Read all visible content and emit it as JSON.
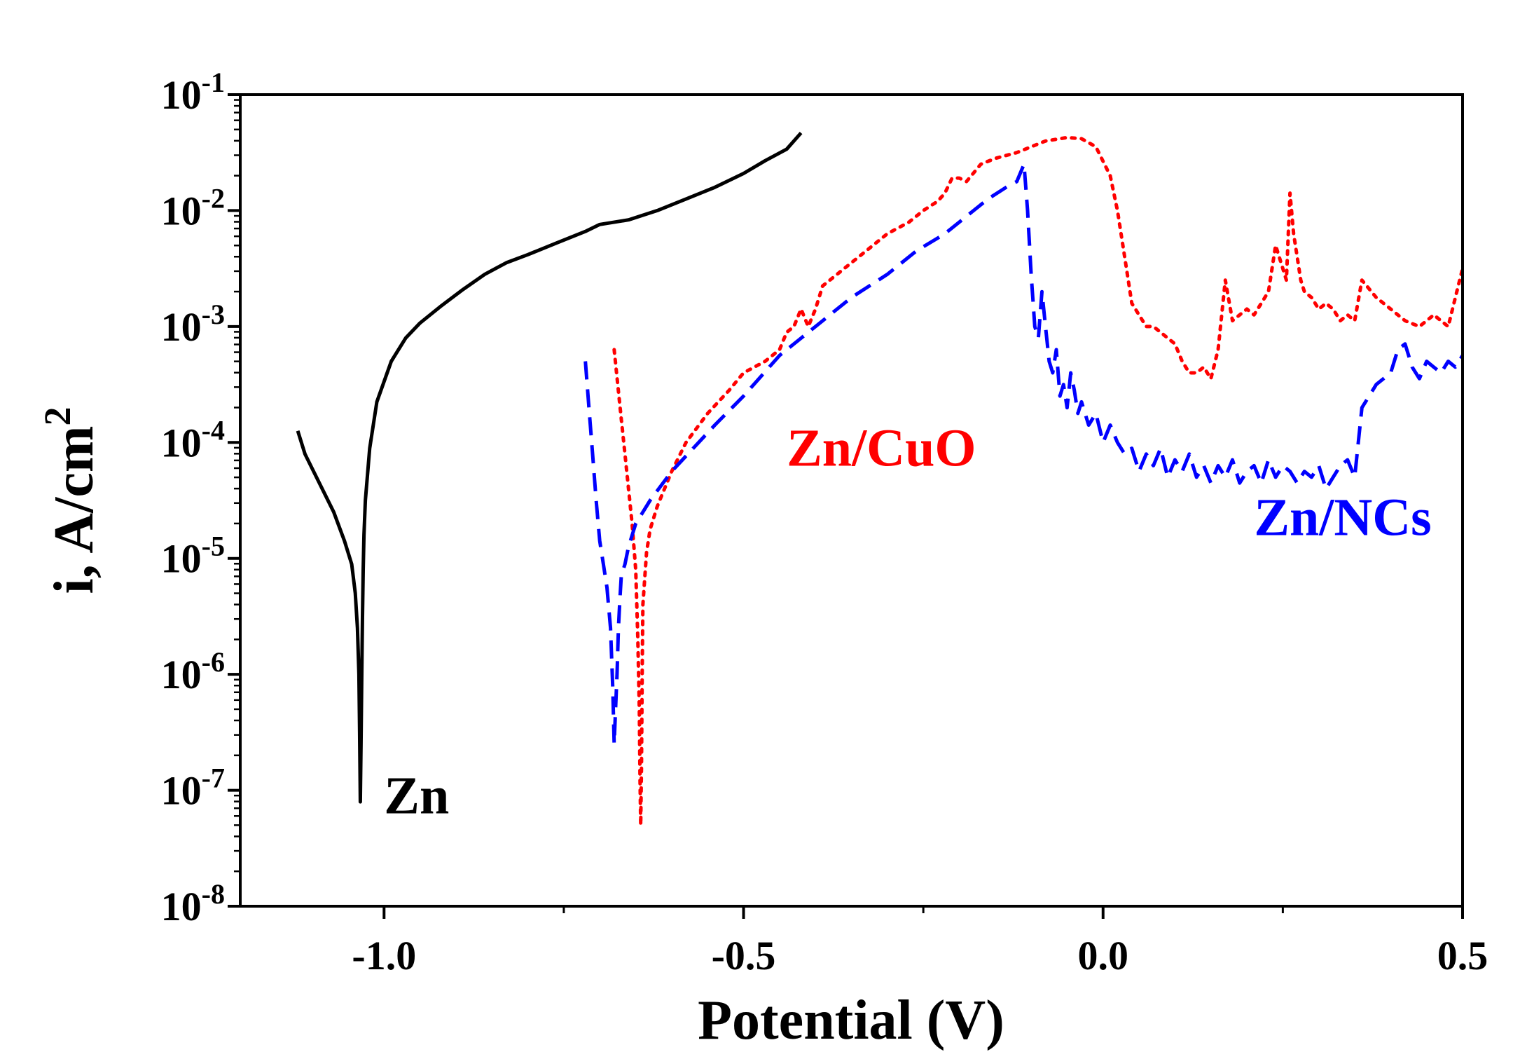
{
  "chart_data": {
    "type": "line",
    "title": "",
    "xlabel": "Potential (V)",
    "ylabel": "i, A/cm",
    "ylabel_superscript": "2",
    "xlim": [
      -1.2,
      0.5
    ],
    "ylim_exponent": [
      -8,
      -1
    ],
    "yscale": "log",
    "x_ticks": [
      {
        "value": -1.0,
        "label": "-1.0"
      },
      {
        "value": -0.5,
        "label": "-0.5"
      },
      {
        "value": 0.0,
        "label": "0.0"
      },
      {
        "value": 0.5,
        "label": "0.5"
      }
    ],
    "x_minor_ticks": [
      -0.75,
      -0.25,
      0.25
    ],
    "y_ticks": [
      {
        "exp": -1,
        "base": "10",
        "sup": "-1"
      },
      {
        "exp": -2,
        "base": "10",
        "sup": "-2"
      },
      {
        "exp": -3,
        "base": "10",
        "sup": "-3"
      },
      {
        "exp": -4,
        "base": "10",
        "sup": "-4"
      },
      {
        "exp": -5,
        "base": "10",
        "sup": "-5"
      },
      {
        "exp": -6,
        "base": "10",
        "sup": "-6"
      },
      {
        "exp": -7,
        "base": "10",
        "sup": "-7"
      },
      {
        "exp": -8,
        "base": "10",
        "sup": "-8"
      }
    ],
    "grid": false,
    "series": [
      {
        "name": "Zn",
        "color": "#000000",
        "style": "solid",
        "x": [
          -1.12,
          -1.11,
          -1.09,
          -1.07,
          -1.055,
          -1.045,
          -1.04,
          -1.037,
          -1.035,
          -1.034,
          -1.033,
          -1.032,
          -1.031,
          -1.03,
          -1.029,
          -1.028,
          -1.026,
          -1.02,
          -1.01,
          -0.99,
          -0.97,
          -0.95,
          -0.92,
          -0.89,
          -0.86,
          -0.83,
          -0.8,
          -0.76,
          -0.72,
          -0.7,
          -0.66,
          -0.62,
          -0.58,
          -0.54,
          -0.5,
          -0.47,
          -0.44,
          -0.42
        ],
        "log_y": [
          -3.9,
          -4.1,
          -4.35,
          -4.6,
          -4.85,
          -5.05,
          -5.3,
          -5.6,
          -6.0,
          -6.5,
          -7.1,
          -6.6,
          -6.0,
          -5.5,
          -5.1,
          -4.8,
          -4.5,
          -4.05,
          -3.65,
          -3.3,
          -3.1,
          -2.97,
          -2.82,
          -2.68,
          -2.55,
          -2.45,
          -2.38,
          -2.28,
          -2.18,
          -2.12,
          -2.08,
          -2.0,
          -1.9,
          -1.8,
          -1.68,
          -1.57,
          -1.47,
          -1.33
        ]
      },
      {
        "name": "Zn/CuO",
        "color": "#ff0000",
        "style": "dotted",
        "x": [
          -0.68,
          -0.675,
          -0.67,
          -0.665,
          -0.66,
          -0.655,
          -0.65,
          -0.647,
          -0.645,
          -0.644,
          -0.643,
          -0.642,
          -0.641,
          -0.64,
          -0.635,
          -0.63,
          -0.62,
          -0.6,
          -0.58,
          -0.55,
          -0.52,
          -0.5,
          -0.47,
          -0.45,
          -0.44,
          -0.43,
          -0.42,
          -0.41,
          -0.4,
          -0.39,
          -0.37,
          -0.35,
          -0.32,
          -0.3,
          -0.27,
          -0.25,
          -0.23,
          -0.22,
          -0.21,
          -0.2,
          -0.19,
          -0.17,
          -0.15,
          -0.12,
          -0.1,
          -0.08,
          -0.05,
          -0.03,
          -0.01,
          0.01,
          0.02,
          0.03,
          0.04,
          0.05,
          0.06,
          0.07,
          0.08,
          0.09,
          0.1,
          0.11,
          0.12,
          0.13,
          0.14,
          0.15,
          0.16,
          0.17,
          0.18,
          0.19,
          0.2,
          0.21,
          0.22,
          0.23,
          0.24,
          0.25,
          0.255,
          0.26,
          0.265,
          0.27,
          0.275,
          0.28,
          0.29,
          0.3,
          0.31,
          0.32,
          0.33,
          0.34,
          0.35,
          0.36,
          0.38,
          0.4,
          0.42,
          0.44,
          0.46,
          0.48,
          0.49,
          0.5
        ],
        "log_y": [
          -3.2,
          -3.5,
          -3.8,
          -4.1,
          -4.4,
          -4.7,
          -5.1,
          -5.7,
          -6.3,
          -6.9,
          -7.3,
          -6.8,
          -6.0,
          -5.4,
          -4.95,
          -4.75,
          -4.55,
          -4.25,
          -4.0,
          -3.75,
          -3.55,
          -3.4,
          -3.3,
          -3.2,
          -3.05,
          -3.0,
          -2.85,
          -3.0,
          -2.85,
          -2.65,
          -2.55,
          -2.45,
          -2.3,
          -2.2,
          -2.1,
          -2.0,
          -1.92,
          -1.85,
          -1.72,
          -1.72,
          -1.75,
          -1.6,
          -1.55,
          -1.5,
          -1.45,
          -1.4,
          -1.37,
          -1.38,
          -1.45,
          -1.7,
          -2.0,
          -2.4,
          -2.8,
          -2.9,
          -3.0,
          -3.0,
          -3.05,
          -3.1,
          -3.15,
          -3.3,
          -3.4,
          -3.4,
          -3.35,
          -3.45,
          -3.2,
          -2.6,
          -2.95,
          -2.9,
          -2.85,
          -2.9,
          -2.8,
          -2.7,
          -2.3,
          -2.5,
          -2.6,
          -1.85,
          -2.2,
          -2.4,
          -2.6,
          -2.7,
          -2.75,
          -2.85,
          -2.8,
          -2.85,
          -2.95,
          -2.9,
          -2.95,
          -2.6,
          -2.75,
          -2.85,
          -2.95,
          -3.0,
          -2.9,
          -3.0,
          -2.75,
          -2.5
        ]
      },
      {
        "name": "Zn/NCs",
        "color": "#0000ff",
        "style": "dashed",
        "x": [
          -0.72,
          -0.715,
          -0.71,
          -0.705,
          -0.7,
          -0.695,
          -0.69,
          -0.685,
          -0.682,
          -0.68,
          -0.678,
          -0.676,
          -0.674,
          -0.672,
          -0.67,
          -0.665,
          -0.66,
          -0.65,
          -0.63,
          -0.6,
          -0.57,
          -0.54,
          -0.5,
          -0.45,
          -0.4,
          -0.35,
          -0.3,
          -0.26,
          -0.22,
          -0.19,
          -0.16,
          -0.14,
          -0.13,
          -0.12,
          -0.11,
          -0.105,
          -0.1,
          -0.095,
          -0.09,
          -0.085,
          -0.08,
          -0.075,
          -0.07,
          -0.065,
          -0.06,
          -0.055,
          -0.05,
          -0.045,
          -0.04,
          -0.035,
          -0.03,
          -0.02,
          -0.01,
          0.0,
          0.01,
          0.02,
          0.03,
          0.04,
          0.05,
          0.06,
          0.07,
          0.08,
          0.09,
          0.1,
          0.11,
          0.12,
          0.13,
          0.14,
          0.15,
          0.16,
          0.17,
          0.18,
          0.19,
          0.2,
          0.21,
          0.22,
          0.23,
          0.24,
          0.25,
          0.26,
          0.27,
          0.28,
          0.29,
          0.3,
          0.31,
          0.32,
          0.33,
          0.34,
          0.35,
          0.36,
          0.37,
          0.38,
          0.39,
          0.4,
          0.41,
          0.42,
          0.43,
          0.44,
          0.45,
          0.46,
          0.47,
          0.48,
          0.49,
          0.5
        ],
        "log_y": [
          -3.3,
          -3.7,
          -4.1,
          -4.5,
          -4.85,
          -5.05,
          -5.25,
          -5.6,
          -6.1,
          -6.6,
          -6.3,
          -6.0,
          -5.6,
          -5.35,
          -5.15,
          -5.05,
          -4.9,
          -4.7,
          -4.5,
          -4.25,
          -4.05,
          -3.85,
          -3.6,
          -3.25,
          -3.0,
          -2.75,
          -2.55,
          -2.35,
          -2.2,
          -2.05,
          -1.9,
          -1.82,
          -1.78,
          -1.75,
          -1.6,
          -2.0,
          -2.55,
          -3.0,
          -3.1,
          -2.7,
          -3.0,
          -3.3,
          -3.4,
          -3.2,
          -3.6,
          -3.5,
          -3.7,
          -3.4,
          -3.55,
          -3.75,
          -3.65,
          -3.85,
          -3.75,
          -4.0,
          -3.85,
          -4.0,
          -4.1,
          -4.05,
          -4.25,
          -4.1,
          -4.2,
          -4.05,
          -4.3,
          -4.15,
          -4.25,
          -4.1,
          -4.3,
          -4.2,
          -4.35,
          -4.2,
          -4.3,
          -4.15,
          -4.35,
          -4.25,
          -4.2,
          -4.35,
          -4.15,
          -4.3,
          -4.2,
          -4.25,
          -4.35,
          -4.25,
          -4.3,
          -4.2,
          -4.4,
          -4.3,
          -4.2,
          -4.15,
          -4.3,
          -3.7,
          -3.6,
          -3.5,
          -3.45,
          -3.4,
          -3.2,
          -3.15,
          -3.35,
          -3.45,
          -3.3,
          -3.35,
          -3.4,
          -3.3,
          -3.35,
          -3.25
        ]
      }
    ],
    "annotations": [
      {
        "text": "Zn",
        "color": "#000000",
        "x": -1.0,
        "log_y": -7.2
      },
      {
        "text": "Zn/CuO",
        "color": "#ff0000",
        "x": -0.44,
        "log_y": -4.2
      },
      {
        "text": "Zn/NCs",
        "color": "#0000ff",
        "x": 0.21,
        "log_y": -4.8
      }
    ]
  }
}
